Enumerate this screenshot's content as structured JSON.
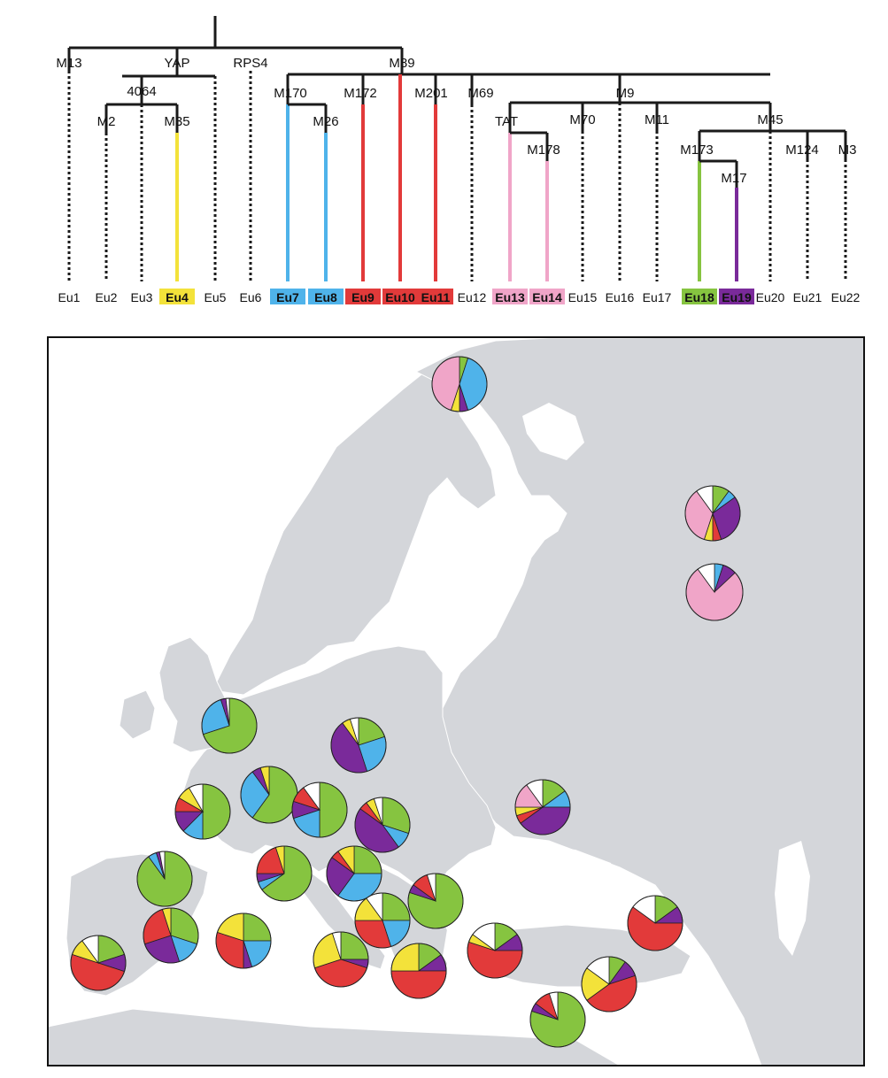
{
  "colors": {
    "Eu4": "#f3e23a",
    "Eu7": "#4fb3ea",
    "Eu8": "#4fb3ea",
    "Eu9": "#e23a3a",
    "Eu10": "#e23a3a",
    "Eu11": "#e23a3a",
    "Eu13": "#f0a5c8",
    "Eu14": "#f0a5c8",
    "Eu18": "#86c440",
    "Eu19": "#7a2a9a",
    "other": "#ffffff",
    "map_land": "#d4d6da",
    "map_sea": "#ffffff"
  },
  "tree": {
    "markers": [
      "M13",
      "YAP",
      "RPS4",
      "M89",
      "4064",
      "M2",
      "M35",
      "M170",
      "M26",
      "M172",
      "M201",
      "M69",
      "M9",
      "TAT",
      "M178",
      "M70",
      "M11",
      "M45",
      "M173",
      "M17",
      "M124",
      "M3"
    ],
    "haplogroups": [
      {
        "label": "Eu1",
        "color": null
      },
      {
        "label": "Eu2",
        "color": null
      },
      {
        "label": "Eu3",
        "color": null
      },
      {
        "label": "Eu4",
        "color": "Eu4"
      },
      {
        "label": "Eu5",
        "color": null
      },
      {
        "label": "Eu6",
        "color": null
      },
      {
        "label": "Eu7",
        "color": "Eu7"
      },
      {
        "label": "Eu8",
        "color": "Eu8"
      },
      {
        "label": "Eu9",
        "color": "Eu9"
      },
      {
        "label": "Eu10",
        "color": "Eu10"
      },
      {
        "label": "Eu11",
        "color": "Eu11"
      },
      {
        "label": "Eu12",
        "color": null
      },
      {
        "label": "Eu13",
        "color": "Eu13"
      },
      {
        "label": "Eu14",
        "color": "Eu14"
      },
      {
        "label": "Eu15",
        "color": null
      },
      {
        "label": "Eu16",
        "color": null
      },
      {
        "label": "Eu17",
        "color": null
      },
      {
        "label": "Eu18",
        "color": "Eu18"
      },
      {
        "label": "Eu19",
        "color": "Eu19"
      },
      {
        "label": "Eu20",
        "color": null
      },
      {
        "label": "Eu21",
        "color": null
      },
      {
        "label": "Eu22",
        "color": null
      }
    ]
  },
  "chart_data": {
    "type": "pie",
    "series_order": [
      "Eu18",
      "Eu7",
      "Eu19",
      "Eu9",
      "Eu4",
      "Eu13",
      "other"
    ],
    "pies": [
      {
        "values": [
          5,
          40,
          5,
          0,
          5,
          45,
          0
        ]
      },
      {
        "values": [
          10,
          5,
          30,
          5,
          5,
          35,
          10
        ]
      },
      {
        "values": [
          0,
          5,
          8,
          0,
          0,
          77,
          10
        ]
      },
      {
        "values": [
          70,
          25,
          3,
          0,
          0,
          0,
          2
        ]
      },
      {
        "values": [
          20,
          25,
          45,
          0,
          5,
          0,
          5
        ]
      },
      {
        "values": [
          60,
          15,
          15,
          10,
          10,
          0,
          10
        ]
      },
      {
        "values": [
          60,
          30,
          5,
          0,
          5,
          0,
          0
        ]
      },
      {
        "values": [
          50,
          20,
          10,
          10,
          0,
          0,
          10
        ]
      },
      {
        "values": [
          30,
          10,
          45,
          5,
          5,
          0,
          5
        ]
      },
      {
        "values": [
          15,
          10,
          40,
          5,
          5,
          15,
          10
        ]
      },
      {
        "values": [
          90,
          5,
          2,
          0,
          0,
          0,
          3
        ]
      },
      {
        "values": [
          65,
          5,
          5,
          20,
          5,
          0,
          0
        ]
      },
      {
        "values": [
          25,
          35,
          25,
          5,
          10,
          0,
          0
        ]
      },
      {
        "values": [
          30,
          15,
          25,
          25,
          5,
          0,
          0
        ]
      },
      {
        "values": [
          25,
          20,
          5,
          30,
          20,
          0,
          0
        ]
      },
      {
        "values": [
          80,
          0,
          5,
          10,
          0,
          0,
          5
        ]
      },
      {
        "values": [
          25,
          20,
          0,
          30,
          15,
          0,
          10
        ]
      },
      {
        "values": [
          20,
          0,
          10,
          50,
          10,
          0,
          10
        ]
      },
      {
        "values": [
          25,
          0,
          5,
          40,
          25,
          0,
          5
        ]
      },
      {
        "values": [
          15,
          0,
          10,
          55,
          5,
          0,
          15
        ]
      },
      {
        "values": [
          15,
          0,
          10,
          50,
          25,
          0,
          0
        ]
      },
      {
        "values": [
          15,
          0,
          10,
          60,
          0,
          0,
          15
        ]
      },
      {
        "values": [
          10,
          0,
          10,
          45,
          20,
          0,
          15
        ]
      },
      {
        "values": [
          80,
          0,
          5,
          10,
          0,
          0,
          5
        ]
      }
    ]
  }
}
